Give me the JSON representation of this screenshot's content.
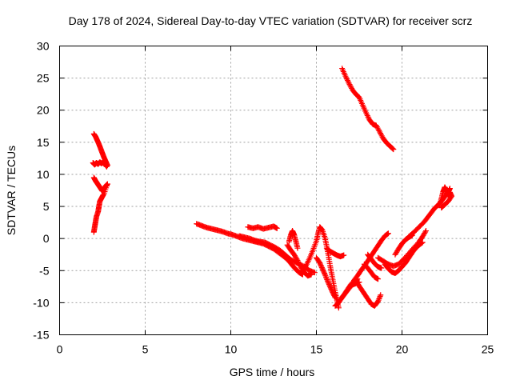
{
  "colors": {
    "series": "#ff0000",
    "frame": "#000000",
    "grid": "#a0a0a0"
  },
  "chart_data": {
    "type": "scatter",
    "title": "Day 178 of 2024, Sidereal Day-to-day VTEC variation (SDTVAR) for receiver scrz",
    "xlabel": "GPS time / hours",
    "ylabel": "SDTVAR / TECUs",
    "xlim": [
      0,
      25
    ],
    "ylim": [
      -15,
      30
    ],
    "xticks": [
      0,
      5,
      10,
      15,
      20,
      25
    ],
    "yticks": [
      -15,
      -10,
      -5,
      0,
      5,
      10,
      15,
      20,
      25,
      30
    ],
    "grid": true,
    "marker": "plus",
    "series": [
      {
        "color": "#ff0000",
        "tracks": [
          [
            [
              2.0,
              16.3
            ],
            [
              2.1,
              15.9
            ],
            [
              2.2,
              15.3
            ],
            [
              2.3,
              14.7
            ],
            [
              2.4,
              14.0
            ],
            [
              2.5,
              13.3
            ],
            [
              2.6,
              12.6
            ],
            [
              2.7,
              12.0
            ],
            [
              2.8,
              11.4
            ]
          ],
          [
            [
              1.95,
              11.8
            ],
            [
              2.05,
              11.5
            ],
            [
              2.15,
              11.8
            ],
            [
              2.25,
              11.6
            ],
            [
              2.35,
              11.9
            ],
            [
              2.45,
              11.7
            ],
            [
              2.55,
              11.9
            ],
            [
              2.65,
              11.6
            ],
            [
              2.75,
              11.2
            ]
          ],
          [
            [
              2.0,
              9.5
            ],
            [
              2.1,
              9.0
            ],
            [
              2.2,
              8.6
            ],
            [
              2.3,
              8.2
            ],
            [
              2.4,
              7.8
            ],
            [
              2.5,
              7.4
            ],
            [
              2.6,
              7.8
            ],
            [
              2.7,
              8.2
            ],
            [
              2.8,
              8.5
            ],
            [
              2.6,
              7.0
            ]
          ],
          [
            [
              2.55,
              6.8
            ],
            [
              2.45,
              6.3
            ],
            [
              2.35,
              5.8
            ],
            [
              2.3,
              5.0
            ],
            [
              2.25,
              4.2
            ],
            [
              2.15,
              3.4
            ],
            [
              2.1,
              2.6
            ],
            [
              2.05,
              1.8
            ],
            [
              2.0,
              1.0
            ]
          ],
          [
            [
              8.0,
              2.3
            ],
            [
              8.3,
              2.0
            ],
            [
              8.6,
              1.7
            ],
            [
              8.9,
              1.5
            ],
            [
              9.2,
              1.3
            ],
            [
              9.5,
              1.1
            ],
            [
              9.8,
              0.8
            ],
            [
              10.1,
              0.6
            ],
            [
              10.4,
              0.3
            ],
            [
              10.7,
              0.0
            ],
            [
              11.0,
              -0.2
            ],
            [
              11.3,
              -0.4
            ],
            [
              11.6,
              -0.6
            ],
            [
              11.9,
              -0.8
            ],
            [
              12.2,
              -1.2
            ],
            [
              12.5,
              -1.6
            ],
            [
              12.8,
              -2.2
            ],
            [
              13.1,
              -2.8
            ],
            [
              13.4,
              -3.5
            ],
            [
              13.6,
              -4.2
            ],
            [
              13.8,
              -4.8
            ],
            [
              14.0,
              -5.3
            ],
            [
              14.2,
              -5.6
            ]
          ],
          [
            [
              10.5,
              0.4
            ],
            [
              10.8,
              0.2
            ],
            [
              11.1,
              0.0
            ],
            [
              11.4,
              -0.3
            ],
            [
              11.7,
              -0.5
            ],
            [
              12.0,
              -0.6
            ],
            [
              12.3,
              -1.0
            ],
            [
              12.6,
              -1.4
            ],
            [
              12.9,
              -1.9
            ],
            [
              13.2,
              -2.6
            ],
            [
              13.5,
              -3.3
            ],
            [
              13.8,
              -3.7
            ],
            [
              14.0,
              -4.0
            ],
            [
              14.3,
              -4.4
            ],
            [
              14.6,
              -5.0
            ],
            [
              14.9,
              -5.3
            ]
          ],
          [
            [
              11.0,
              1.8
            ],
            [
              11.3,
              1.6
            ],
            [
              11.6,
              1.8
            ],
            [
              11.9,
              1.5
            ],
            [
              12.2,
              1.7
            ],
            [
              12.5,
              1.9
            ],
            [
              12.7,
              1.6
            ]
          ],
          [
            [
              13.3,
              -1.0
            ],
            [
              13.5,
              -1.8
            ],
            [
              13.7,
              -2.5
            ],
            [
              13.9,
              -3.4
            ],
            [
              14.1,
              -4.5
            ],
            [
              14.3,
              -5.3
            ],
            [
              14.5,
              -5.8
            ],
            [
              14.7,
              -5.6
            ]
          ],
          [
            [
              13.4,
              -0.5
            ],
            [
              13.5,
              0.5
            ],
            [
              13.6,
              1.2
            ],
            [
              13.7,
              0.6
            ],
            [
              13.8,
              -0.4
            ],
            [
              13.9,
              -1.5
            ]
          ],
          [
            [
              14.2,
              -5.0
            ],
            [
              14.4,
              -4.2
            ],
            [
              14.6,
              -3.1
            ],
            [
              14.8,
              -1.8
            ],
            [
              15.0,
              -0.4
            ],
            [
              15.1,
              0.8
            ],
            [
              15.2,
              1.8
            ],
            [
              15.35,
              1.3
            ],
            [
              15.5,
              0.1
            ],
            [
              15.6,
              -1.2
            ],
            [
              15.7,
              -2.6
            ],
            [
              15.8,
              -4.2
            ],
            [
              15.9,
              -5.6
            ],
            [
              16.0,
              -7.0
            ],
            [
              16.1,
              -8.4
            ],
            [
              16.2,
              -9.6
            ],
            [
              16.3,
              -10.8
            ]
          ],
          [
            [
              15.0,
              -3.0
            ],
            [
              15.2,
              -3.8
            ],
            [
              15.35,
              -4.7
            ],
            [
              15.5,
              -5.6
            ],
            [
              15.65,
              -6.6
            ],
            [
              15.8,
              -7.5
            ],
            [
              15.95,
              -8.4
            ],
            [
              16.1,
              -9.2
            ]
          ],
          [
            [
              15.6,
              -1.5
            ],
            [
              15.8,
              -2.0
            ],
            [
              16.0,
              -2.3
            ],
            [
              16.2,
              -2.6
            ],
            [
              16.4,
              -2.8
            ],
            [
              16.6,
              -2.6
            ]
          ],
          [
            [
              16.1,
              -10.5
            ],
            [
              16.3,
              -10.0
            ],
            [
              16.5,
              -9.2
            ],
            [
              16.7,
              -8.5
            ],
            [
              16.9,
              -7.8
            ],
            [
              17.1,
              -7.2
            ],
            [
              17.3,
              -7.0
            ],
            [
              17.5,
              -6.8
            ]
          ],
          [
            [
              16.4,
              -9.5
            ],
            [
              16.6,
              -8.8
            ],
            [
              16.8,
              -8.0
            ],
            [
              17.0,
              -7.2
            ],
            [
              17.2,
              -6.6
            ],
            [
              17.4,
              -6.3
            ]
          ],
          [
            [
              17.2,
              -6.5
            ],
            [
              17.4,
              -5.8
            ],
            [
              17.6,
              -5.0
            ],
            [
              17.8,
              -4.3
            ],
            [
              18.0,
              -3.5
            ],
            [
              18.2,
              -2.7
            ],
            [
              18.4,
              -1.9
            ],
            [
              18.6,
              -1.1
            ],
            [
              18.8,
              -0.3
            ],
            [
              19.0,
              0.4
            ],
            [
              19.2,
              0.8
            ]
          ],
          [
            [
              17.4,
              -7.0
            ],
            [
              17.6,
              -7.8
            ],
            [
              17.8,
              -8.6
            ],
            [
              18.0,
              -9.4
            ],
            [
              18.2,
              -10.2
            ],
            [
              18.4,
              -10.5
            ],
            [
              18.6,
              -9.8
            ],
            [
              18.75,
              -8.8
            ]
          ],
          [
            [
              18.0,
              -2.5
            ],
            [
              18.2,
              -3.2
            ],
            [
              18.4,
              -3.9
            ],
            [
              18.6,
              -4.4
            ],
            [
              18.8,
              -4.6
            ]
          ],
          [
            [
              17.8,
              -4.0
            ],
            [
              18.0,
              -4.6
            ],
            [
              18.2,
              -5.3
            ],
            [
              18.4,
              -6.0
            ],
            [
              18.6,
              -6.3
            ]
          ],
          [
            [
              19.0,
              -4.0
            ],
            [
              19.2,
              -4.7
            ],
            [
              19.4,
              -5.2
            ],
            [
              19.6,
              -5.4
            ],
            [
              19.8,
              -5.0
            ],
            [
              20.0,
              -4.4
            ],
            [
              20.2,
              -3.8
            ],
            [
              20.4,
              -3.0
            ],
            [
              20.6,
              -2.2
            ],
            [
              20.8,
              -1.5
            ],
            [
              21.0,
              -1.0
            ],
            [
              21.2,
              -0.6
            ]
          ],
          [
            [
              18.6,
              -3.0
            ],
            [
              18.9,
              -3.5
            ],
            [
              19.2,
              -4.0
            ],
            [
              19.5,
              -4.3
            ],
            [
              19.8,
              -4.0
            ],
            [
              20.1,
              -3.2
            ],
            [
              20.4,
              -2.3
            ],
            [
              20.7,
              -1.4
            ],
            [
              21.0,
              -0.5
            ],
            [
              21.2,
              0.3
            ],
            [
              21.4,
              1.2
            ]
          ],
          [
            [
              19.6,
              -2.5
            ],
            [
              19.8,
              -1.6
            ],
            [
              20.0,
              -0.8
            ],
            [
              20.2,
              -0.2
            ],
            [
              20.4,
              0.2
            ],
            [
              20.6,
              0.5
            ]
          ],
          [
            [
              20.4,
              0.3
            ],
            [
              20.7,
              1.0
            ],
            [
              21.0,
              1.8
            ],
            [
              21.3,
              2.6
            ],
            [
              21.5,
              3.3
            ],
            [
              21.7,
              4.0
            ],
            [
              21.9,
              4.7
            ],
            [
              22.1,
              5.2
            ],
            [
              22.3,
              5.8
            ],
            [
              22.5,
              6.5
            ],
            [
              22.7,
              7.2
            ],
            [
              22.8,
              7.8
            ]
          ],
          [
            [
              22.2,
              5.2
            ],
            [
              22.3,
              6.2
            ],
            [
              22.4,
              7.3
            ],
            [
              22.5,
              8.0
            ],
            [
              22.6,
              7.5
            ],
            [
              22.7,
              6.8
            ],
            [
              22.8,
              7.2
            ],
            [
              22.9,
              6.6
            ],
            [
              22.7,
              5.8
            ],
            [
              22.5,
              5.3
            ],
            [
              22.3,
              4.8
            ]
          ],
          [
            [
              16.5,
              26.5
            ],
            [
              16.7,
              25.3
            ],
            [
              16.9,
              24.2
            ],
            [
              17.1,
              23.2
            ],
            [
              17.3,
              22.5
            ],
            [
              17.5,
              22.0
            ],
            [
              17.7,
              20.8
            ],
            [
              17.9,
              19.6
            ],
            [
              18.1,
              18.5
            ],
            [
              18.3,
              17.8
            ],
            [
              18.5,
              17.6
            ],
            [
              18.7,
              16.6
            ],
            [
              18.9,
              15.6
            ],
            [
              19.1,
              14.9
            ],
            [
              19.3,
              14.4
            ],
            [
              19.5,
              13.9
            ]
          ]
        ]
      }
    ]
  }
}
